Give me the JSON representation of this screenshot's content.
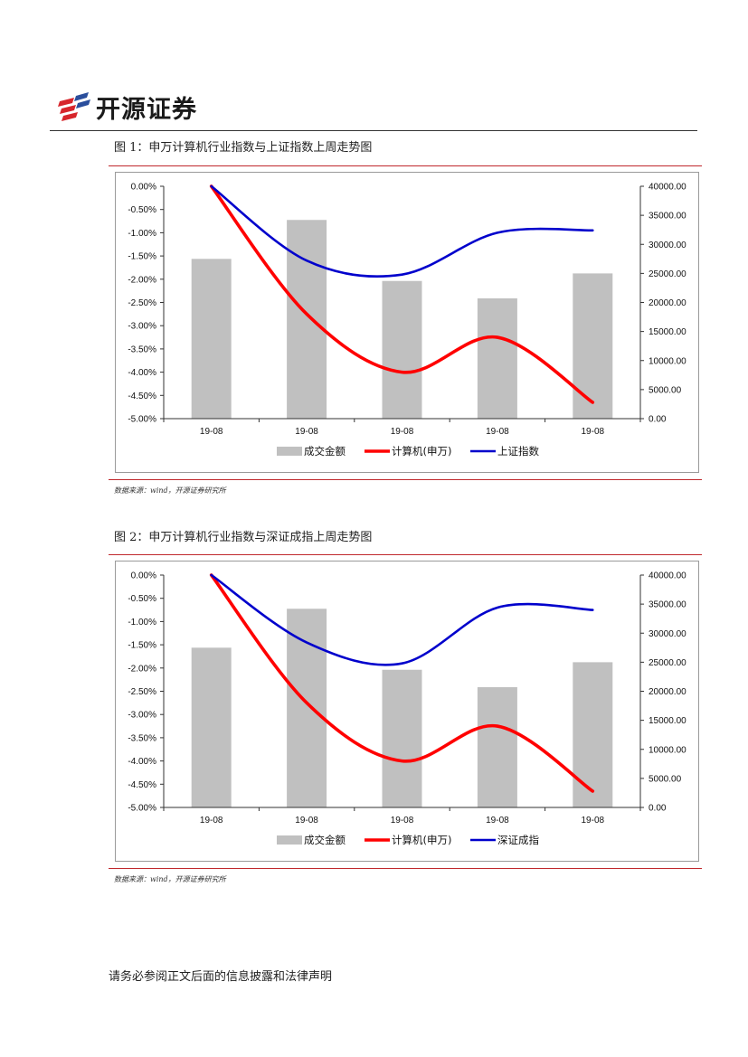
{
  "brand": {
    "name": "开源证券",
    "accent": "#d7262c"
  },
  "colors": {
    "bar": "#c0c0c0",
    "red_line": "#ff0000",
    "blue_line": "#0000cc",
    "rule_red": "#c0282d"
  },
  "figures": [
    {
      "title": "图 1：申万计算机行业指数与上证指数上周走势图",
      "source": "数据来源：wind，开源证券研究所"
    },
    {
      "title": "图 2：申万计算机行业指数与深证成指上周走势图",
      "source": "数据来源：wind，开源证券研究所"
    }
  ],
  "chart_data": [
    {
      "type": "bar+line",
      "categories": [
        "19-08",
        "19-08",
        "19-08",
        "19-08",
        "19-08"
      ],
      "y_left": {
        "ticks": [
          "0.00%",
          "-0.50%",
          "-1.00%",
          "-1.50%",
          "-2.00%",
          "-2.50%",
          "-3.00%",
          "-3.50%",
          "-4.00%",
          "-4.50%",
          "-5.00%"
        ],
        "min": -5.0,
        "max": 0.0
      },
      "y_right": {
        "ticks": [
          "40000.00",
          "35000.00",
          "30000.00",
          "25000.00",
          "20000.00",
          "15000.00",
          "10000.00",
          "5000.00",
          "0.00"
        ],
        "min": 0,
        "max": 40000
      },
      "series": [
        {
          "name": "成交金额",
          "kind": "bar",
          "axis": "right",
          "values": [
            27500,
            34200,
            23700,
            20700,
            25000
          ]
        },
        {
          "name": "计算机(申万)",
          "kind": "line",
          "axis": "left",
          "values": [
            0.0,
            -2.75,
            -4.0,
            -3.25,
            -4.65
          ]
        },
        {
          "name": "上证指数",
          "kind": "line",
          "axis": "left",
          "values": [
            0.0,
            -1.6,
            -1.9,
            -1.0,
            -0.95
          ]
        }
      ],
      "legend": "bottom"
    },
    {
      "type": "bar+line",
      "categories": [
        "19-08",
        "19-08",
        "19-08",
        "19-08",
        "19-08"
      ],
      "y_left": {
        "ticks": [
          "0.00%",
          "-0.50%",
          "-1.00%",
          "-1.50%",
          "-2.00%",
          "-2.50%",
          "-3.00%",
          "-3.50%",
          "-4.00%",
          "-4.50%",
          "-5.00%"
        ],
        "min": -5.0,
        "max": 0.0
      },
      "y_right": {
        "ticks": [
          "40000.00",
          "35000.00",
          "30000.00",
          "25000.00",
          "20000.00",
          "15000.00",
          "10000.00",
          "5000.00",
          "0.00"
        ],
        "min": 0,
        "max": 40000
      },
      "series": [
        {
          "name": "成交金额",
          "kind": "bar",
          "axis": "right",
          "values": [
            27500,
            34200,
            23700,
            20700,
            25000
          ]
        },
        {
          "name": "计算机(申万)",
          "kind": "line",
          "axis": "left",
          "values": [
            0.0,
            -2.75,
            -4.0,
            -3.25,
            -4.65
          ]
        },
        {
          "name": "深证成指",
          "kind": "line",
          "axis": "left",
          "values": [
            0.0,
            -1.45,
            -1.9,
            -0.7,
            -0.75
          ]
        }
      ],
      "legend": "bottom"
    }
  ],
  "footer": {
    "note": "请务必参阅正文后面的信息披露和法律声明"
  }
}
